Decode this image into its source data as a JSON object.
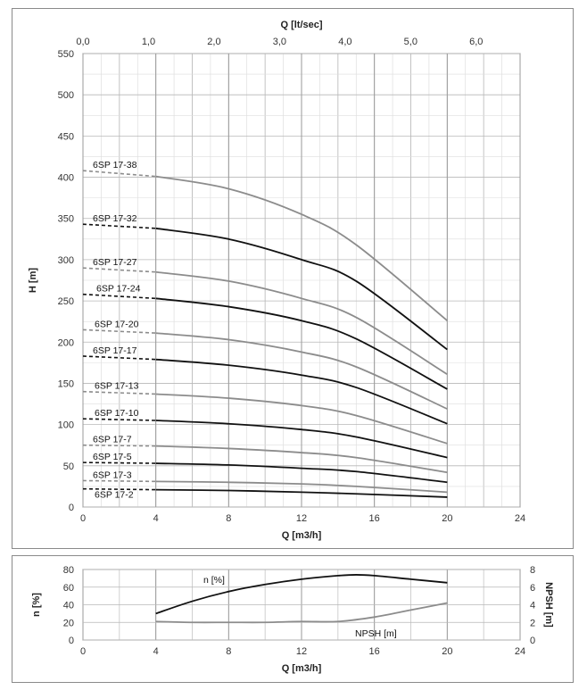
{
  "chart_data": [
    {
      "type": "line",
      "xlabel": "Q [m3/h]",
      "ylabel": "H [m]",
      "x2label": "Q [lt/sec]",
      "xlim": [
        0,
        24
      ],
      "ylim": [
        0,
        550
      ],
      "x2lim": [
        0,
        6.67
      ],
      "xticks": [
        "0",
        "4",
        "8",
        "12",
        "16",
        "20",
        "24"
      ],
      "yticks": [
        "0",
        "50",
        "100",
        "150",
        "200",
        "250",
        "300",
        "350",
        "400",
        "450",
        "500",
        "550"
      ],
      "x2ticks": [
        "0,0",
        "1,0",
        "2,0",
        "3,0",
        "4,0",
        "5,0",
        "6,0"
      ],
      "grid": true,
      "colors": {
        "dark": "#111111",
        "gray": "#8c8c8c"
      },
      "dashed_range": [
        0,
        4
      ],
      "series": [
        {
          "name": "6SP 17-38",
          "color": "gray",
          "x": [
            0,
            4,
            8,
            12,
            15,
            20
          ],
          "y": [
            408,
            401,
            386,
            355,
            318,
            226
          ]
        },
        {
          "name": "6SP 17-32",
          "color": "dark",
          "x": [
            0,
            4,
            8,
            12,
            15,
            20
          ],
          "y": [
            343,
            338,
            325,
            300,
            274,
            191
          ]
        },
        {
          "name": "6SP 17-27",
          "color": "gray",
          "x": [
            0,
            4,
            8,
            12,
            15,
            20
          ],
          "y": [
            290,
            285,
            274,
            253,
            230,
            161
          ]
        },
        {
          "name": "6SP 17-24",
          "color": "dark",
          "x": [
            0,
            4,
            8,
            12,
            15,
            20
          ],
          "y": [
            258,
            253,
            243,
            226,
            204,
            143
          ]
        },
        {
          "name": "6SP 17-20",
          "color": "gray",
          "x": [
            0,
            4,
            8,
            12,
            15,
            20
          ],
          "y": [
            215,
            211,
            203,
            188,
            170,
            119
          ]
        },
        {
          "name": "6SP 17-17",
          "color": "dark",
          "x": [
            0,
            4,
            8,
            12,
            15,
            20
          ],
          "y": [
            183,
            179,
            172,
            160,
            145,
            101
          ]
        },
        {
          "name": "6SP 17-13",
          "color": "gray",
          "x": [
            0,
            4,
            8,
            12,
            15,
            20
          ],
          "y": [
            140,
            137,
            132,
            123,
            111,
            77
          ]
        },
        {
          "name": "6SP 17-10",
          "color": "dark",
          "x": [
            0,
            4,
            8,
            12,
            15,
            20
          ],
          "y": [
            107,
            105,
            101,
            94,
            85,
            60
          ]
        },
        {
          "name": "6SP 17-7",
          "color": "gray",
          "x": [
            0,
            4,
            8,
            12,
            15,
            20
          ],
          "y": [
            75,
            74,
            71,
            66,
            60,
            42
          ]
        },
        {
          "name": "6SP 17-5",
          "color": "dark",
          "x": [
            0,
            4,
            8,
            12,
            15,
            20
          ],
          "y": [
            54,
            53,
            51,
            47,
            43,
            30
          ]
        },
        {
          "name": "6SP 17-3",
          "color": "gray",
          "x": [
            0,
            4,
            8,
            12,
            15,
            20
          ],
          "y": [
            32,
            31,
            30,
            28,
            25,
            18
          ]
        },
        {
          "name": "6SP 17-2",
          "color": "dark",
          "x": [
            0,
            4,
            8,
            12,
            15,
            20
          ],
          "y": [
            22,
            21,
            20,
            18,
            16,
            12
          ]
        }
      ]
    },
    {
      "type": "line",
      "xlabel": "Q [m3/h]",
      "ylabel": "n [%]",
      "y2label": "NPSH [m]",
      "xlim": [
        0,
        24
      ],
      "ylim": [
        0,
        80
      ],
      "y2lim": [
        0,
        8
      ],
      "xticks": [
        "0",
        "4",
        "8",
        "12",
        "16",
        "20",
        "24"
      ],
      "yticks": [
        "0",
        "20",
        "40",
        "60",
        "80"
      ],
      "y2ticks": [
        "0",
        "2",
        "4",
        "6",
        "8"
      ],
      "grid": true,
      "series": [
        {
          "name": "n [%]",
          "axis": "left",
          "color": "dark",
          "x": [
            4,
            6,
            8,
            10,
            12,
            14,
            15,
            16,
            18,
            20
          ],
          "y": [
            30,
            44,
            55,
            63,
            69,
            73,
            74,
            73,
            69,
            65
          ]
        },
        {
          "name": "NPSH [m]",
          "axis": "right",
          "color": "gray",
          "x": [
            4,
            6,
            8,
            10,
            12,
            14,
            16,
            18,
            20
          ],
          "y": [
            2.1,
            2.0,
            2.0,
            2.0,
            2.1,
            2.1,
            2.6,
            3.4,
            4.2
          ]
        }
      ]
    }
  ]
}
